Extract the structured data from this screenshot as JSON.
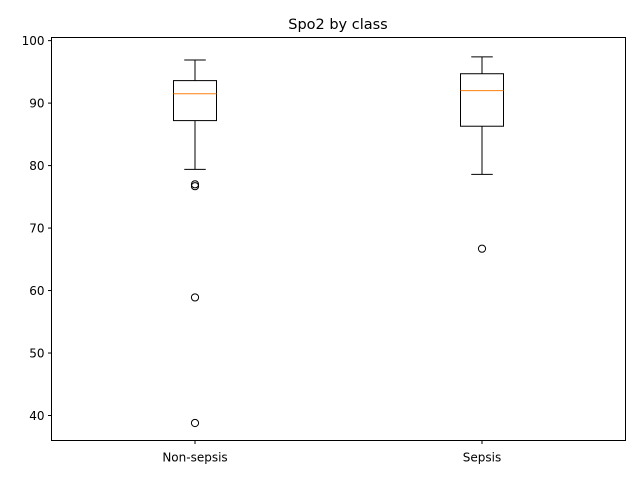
{
  "chart_data": {
    "type": "box",
    "title": "Spo2 by class",
    "xlabel": "",
    "ylabel": "",
    "categories": [
      "Non-sepsis",
      "Sepsis"
    ],
    "ylim": [
      36,
      100.5
    ],
    "yticks": [
      40,
      50,
      60,
      70,
      80,
      90,
      100
    ],
    "grid": false,
    "boxes": [
      {
        "label": "Non-sepsis",
        "whisker_low": 79.4,
        "q1": 87.2,
        "median": 91.5,
        "q3": 93.6,
        "whisker_high": 96.9,
        "outliers": [
          77.0,
          76.7,
          58.9,
          38.8
        ]
      },
      {
        "label": "Sepsis",
        "whisker_low": 78.6,
        "q1": 86.3,
        "median": 92.0,
        "q3": 94.7,
        "whisker_high": 97.4,
        "outliers": [
          66.7
        ]
      }
    ],
    "colors": {
      "box": "#000000",
      "median": "#ff7f0e",
      "outlier": "#000000"
    }
  }
}
